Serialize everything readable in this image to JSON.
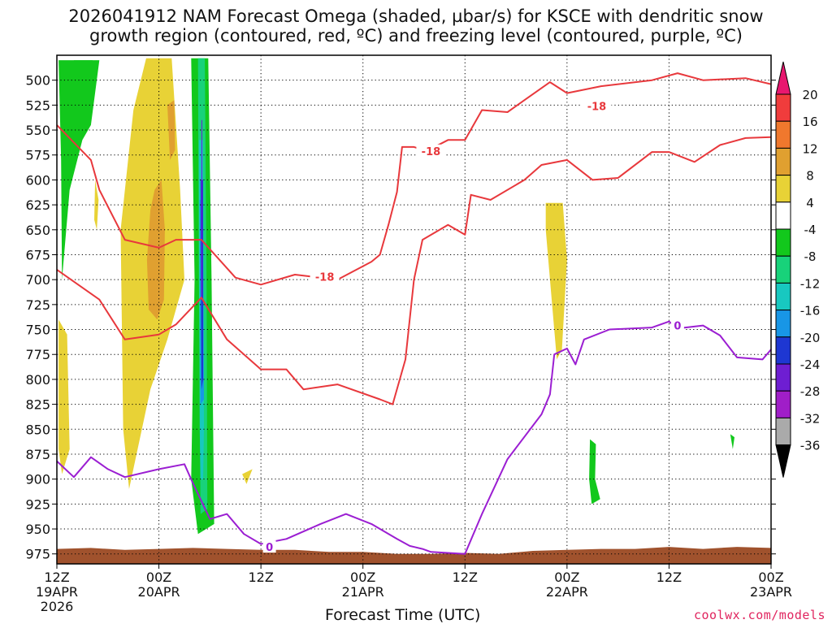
{
  "chart_data": {
    "type": "time-height cross section",
    "title_line1": "2026041912 NAM Forecast Omega (shaded, µbar/s) for KSCE with dendritic snow",
    "title_line2": "growth region (contoured, red, ºC) and freezing level (contoured, purple, ºC)",
    "xlabel": "Forecast Time (UTC)",
    "credit": "coolwx.com/models",
    "y_ticks": [
      "500",
      "525",
      "550",
      "575",
      "600",
      "625",
      "650",
      "675",
      "700",
      "725",
      "750",
      "775",
      "800",
      "825",
      "850",
      "875",
      "900",
      "925",
      "950",
      "975"
    ],
    "y_range_mb": [
      475,
      985
    ],
    "x_range_hours": [
      0,
      84
    ],
    "x_ticks": [
      {
        "hour": 0,
        "label": "12Z",
        "sub": "19APR",
        "sub2": "2026"
      },
      {
        "hour": 12,
        "label": "00Z",
        "sub": "20APR",
        "sub2": ""
      },
      {
        "hour": 24,
        "label": "12Z",
        "sub": "",
        "sub2": ""
      },
      {
        "hour": 36,
        "label": "00Z",
        "sub": "21APR",
        "sub2": ""
      },
      {
        "hour": 48,
        "label": "12Z",
        "sub": "",
        "sub2": ""
      },
      {
        "hour": 60,
        "label": "00Z",
        "sub": "22APR",
        "sub2": ""
      },
      {
        "hour": 72,
        "label": "12Z",
        "sub": "",
        "sub2": ""
      },
      {
        "hour": 84,
        "label": "00Z",
        "sub": "23APR",
        "sub2": ""
      }
    ],
    "colorbar": {
      "labels": [
        "20",
        "16",
        "12",
        "8",
        "4",
        "-4",
        "-8",
        "-12",
        "-16",
        "-20",
        "-24",
        "-28",
        "-32",
        "-36"
      ],
      "colors": [
        "#e8176f",
        "#f03c3c",
        "#f0782d",
        "#e0a030",
        "#e8d236",
        "#ffffff",
        "#12c81c",
        "#18d27a",
        "#18c8c0",
        "#1896e6",
        "#1e37d2",
        "#6e1ed2",
        "#a01ec8",
        "#aaaaaa",
        "#000000"
      ]
    },
    "contour_labels": [
      {
        "text": "-18",
        "hour": 31.5,
        "p": 697,
        "color": "#e8383c"
      },
      {
        "text": "-18",
        "hour": 44.0,
        "p": 571,
        "color": "#e8383c"
      },
      {
        "text": "-18",
        "hour": 63.5,
        "p": 526,
        "color": "#e8383c"
      },
      {
        "text": "0",
        "hour": 25.0,
        "p": 968,
        "color": "#9b1ed2"
      },
      {
        "text": "0",
        "hour": 73.0,
        "p": 746,
        "color": "#9b1ed2"
      }
    ],
    "dgz_lower_boundary": [
      [
        0,
        690
      ],
      [
        5,
        720
      ],
      [
        8,
        760
      ],
      [
        12,
        755
      ],
      [
        14,
        745
      ],
      [
        17,
        718
      ],
      [
        20,
        760
      ],
      [
        24,
        790
      ],
      [
        27,
        790
      ],
      [
        29,
        810
      ],
      [
        33,
        805
      ],
      [
        38,
        820
      ],
      [
        39.5,
        825
      ],
      [
        41,
        780
      ],
      [
        42,
        700
      ],
      [
        43,
        660
      ],
      [
        46,
        645
      ],
      [
        48,
        655
      ],
      [
        48.7,
        615
      ],
      [
        51,
        620
      ],
      [
        55,
        600
      ],
      [
        57,
        585
      ],
      [
        60,
        580
      ],
      [
        63,
        600
      ],
      [
        66,
        598
      ],
      [
        70,
        572
      ],
      [
        72,
        572
      ],
      [
        75,
        582
      ],
      [
        78,
        565
      ],
      [
        81,
        558
      ],
      [
        84,
        557
      ]
    ],
    "dgz_upper_boundary": [
      [
        0,
        545
      ],
      [
        4,
        580
      ],
      [
        5,
        610
      ],
      [
        8,
        660
      ],
      [
        12,
        668
      ],
      [
        14,
        660
      ],
      [
        17,
        660
      ],
      [
        21,
        698
      ],
      [
        24,
        705
      ],
      [
        28,
        695
      ],
      [
        33,
        700
      ],
      [
        37,
        682
      ],
      [
        38,
        675
      ],
      [
        39,
        645
      ],
      [
        40,
        612
      ],
      [
        40.6,
        567
      ],
      [
        42,
        567
      ],
      [
        43.5,
        571
      ],
      [
        46,
        560
      ],
      [
        48,
        560
      ],
      [
        50,
        530
      ],
      [
        53,
        532
      ],
      [
        55,
        520
      ],
      [
        58,
        502
      ],
      [
        60,
        513
      ],
      [
        64,
        506
      ],
      [
        70,
        500
      ],
      [
        73,
        493
      ],
      [
        76,
        500
      ],
      [
        81,
        498
      ],
      [
        84,
        504
      ]
    ],
    "freezing_level": [
      [
        0,
        882
      ],
      [
        2,
        898
      ],
      [
        4,
        878
      ],
      [
        6,
        890
      ],
      [
        8,
        898
      ],
      [
        12,
        890
      ],
      [
        15,
        885
      ],
      [
        16,
        904
      ],
      [
        18,
        940
      ],
      [
        20,
        935
      ],
      [
        22,
        955
      ],
      [
        24,
        965
      ],
      [
        27,
        960
      ],
      [
        31,
        945
      ],
      [
        34,
        935
      ],
      [
        37,
        945
      ],
      [
        40,
        960
      ],
      [
        41.5,
        967
      ],
      [
        43,
        970
      ],
      [
        44,
        973
      ],
      [
        48,
        975
      ],
      [
        50,
        935
      ],
      [
        53,
        880
      ],
      [
        57,
        835
      ],
      [
        58,
        815
      ],
      [
        58.5,
        775
      ],
      [
        60,
        769
      ],
      [
        61,
        785
      ],
      [
        62,
        760
      ],
      [
        65,
        750
      ],
      [
        70,
        748
      ],
      [
        72,
        742
      ],
      [
        73,
        749
      ],
      [
        76,
        746
      ],
      [
        78,
        756
      ],
      [
        80,
        778
      ],
      [
        83,
        780
      ],
      [
        84,
        770
      ]
    ],
    "omega_shading": [
      {
        "label": "-8",
        "color": "#12c81c",
        "polygon": [
          [
            0.2,
            480
          ],
          [
            0.5,
            580
          ],
          [
            0.6,
            700
          ],
          [
            1.5,
            610
          ],
          [
            3.0,
            560
          ],
          [
            4.0,
            545
          ],
          [
            5.0,
            480
          ]
        ]
      },
      {
        "label": "-8",
        "color": "#12c81c",
        "polygon": [
          [
            2.0,
            480
          ],
          [
            2.4,
            540
          ],
          [
            3.2,
            520
          ],
          [
            4.2,
            480
          ]
        ]
      },
      {
        "label": "4",
        "color": "#e8d236",
        "polygon": [
          [
            10.5,
            478
          ],
          [
            13.5,
            478
          ],
          [
            14.5,
            610
          ],
          [
            15.0,
            700
          ],
          [
            13.0,
            760
          ],
          [
            11.0,
            810
          ],
          [
            8.5,
            910
          ],
          [
            7.8,
            850
          ],
          [
            7.5,
            650
          ],
          [
            9.0,
            530
          ]
        ]
      },
      {
        "label": "4",
        "color": "#e8d236",
        "polygon": [
          [
            0.2,
            740
          ],
          [
            1.2,
            755
          ],
          [
            1.5,
            870
          ],
          [
            0.6,
            895
          ],
          [
            0.2,
            870
          ]
        ]
      },
      {
        "label": "4",
        "color": "#e8d236",
        "polygon": [
          [
            4.5,
            600
          ],
          [
            4.9,
            620
          ],
          [
            4.7,
            650
          ],
          [
            4.4,
            640
          ]
        ]
      },
      {
        "label": "4",
        "color": "#e8d236",
        "polygon": [
          [
            21.8,
            895
          ],
          [
            23.0,
            890
          ],
          [
            22.3,
            905
          ]
        ]
      },
      {
        "label": "4",
        "color": "#e8d236",
        "polygon": [
          [
            57.5,
            623
          ],
          [
            59.5,
            623
          ],
          [
            60.0,
            680
          ],
          [
            59.4,
            770
          ],
          [
            58.8,
            780
          ],
          [
            58.0,
            700
          ],
          [
            57.5,
            650
          ]
        ]
      },
      {
        "label": "8",
        "color": "#e0a030",
        "polygon": [
          [
            11.5,
            610
          ],
          [
            12.3,
            600
          ],
          [
            12.7,
            650
          ],
          [
            12.6,
            720
          ],
          [
            11.8,
            740
          ],
          [
            10.8,
            730
          ],
          [
            10.6,
            680
          ],
          [
            11.0,
            630
          ]
        ]
      },
      {
        "label": "8",
        "color": "#e0a030",
        "polygon": [
          [
            13.0,
            525
          ],
          [
            13.8,
            520
          ],
          [
            13.9,
            570
          ],
          [
            13.3,
            580
          ]
        ]
      },
      {
        "label": "-8",
        "color": "#12c81c",
        "polygon": [
          [
            15.8,
            478
          ],
          [
            17.8,
            478
          ],
          [
            18.2,
            700
          ],
          [
            18.5,
            945
          ],
          [
            16.6,
            955
          ],
          [
            15.8,
            900
          ],
          [
            16.2,
            700
          ]
        ]
      },
      {
        "label": "-12",
        "color": "#18d27a",
        "polygon": [
          [
            16.6,
            478
          ],
          [
            17.4,
            478
          ],
          [
            17.6,
            700
          ],
          [
            17.7,
            930
          ],
          [
            16.9,
            935
          ],
          [
            16.7,
            700
          ]
        ]
      },
      {
        "label": "-16",
        "color": "#18c8c0",
        "polygon": [
          [
            16.7,
            560
          ],
          [
            17.2,
            560
          ],
          [
            17.3,
            850
          ],
          [
            17.2,
            900
          ],
          [
            16.9,
            900
          ],
          [
            16.8,
            850
          ]
        ]
      },
      {
        "label": "-20",
        "color": "#1896e6",
        "polygon": [
          [
            16.8,
            620
          ],
          [
            17.2,
            620
          ],
          [
            17.3,
            820
          ],
          [
            16.9,
            825
          ]
        ]
      },
      {
        "label": "-24",
        "color": "#1e37d2",
        "polygon": [
          [
            16.9,
            600
          ],
          [
            17.2,
            600
          ],
          [
            17.2,
            800
          ],
          [
            17.0,
            810
          ]
        ]
      },
      {
        "label": "-28",
        "color": "#6e1ed2",
        "polygon": [
          [
            17.0,
            540
          ],
          [
            17.1,
            540
          ],
          [
            17.1,
            720
          ],
          [
            17.0,
            720
          ]
        ]
      },
      {
        "label": "-8",
        "color": "#12c81c",
        "polygon": [
          [
            62.7,
            860
          ],
          [
            63.4,
            865
          ],
          [
            63.3,
            900
          ],
          [
            63.9,
            920
          ],
          [
            62.9,
            925
          ],
          [
            62.6,
            900
          ]
        ]
      },
      {
        "label": "-8",
        "color": "#12c81c",
        "polygon": [
          [
            79.2,
            855
          ],
          [
            79.7,
            858
          ],
          [
            79.5,
            870
          ]
        ]
      }
    ],
    "terrain_top_mb": [
      [
        0,
        970
      ],
      [
        4,
        969
      ],
      [
        8,
        971
      ],
      [
        12,
        970
      ],
      [
        16,
        969
      ],
      [
        20,
        970
      ],
      [
        24,
        971
      ],
      [
        28,
        971
      ],
      [
        32,
        973
      ],
      [
        36,
        973
      ],
      [
        40,
        975
      ],
      [
        44,
        975
      ],
      [
        48,
        974
      ],
      [
        52,
        975
      ],
      [
        56,
        972
      ],
      [
        60,
        971
      ],
      [
        64,
        970
      ],
      [
        68,
        970
      ],
      [
        72,
        968
      ],
      [
        76,
        970
      ],
      [
        80,
        968
      ],
      [
        84,
        969
      ]
    ]
  }
}
